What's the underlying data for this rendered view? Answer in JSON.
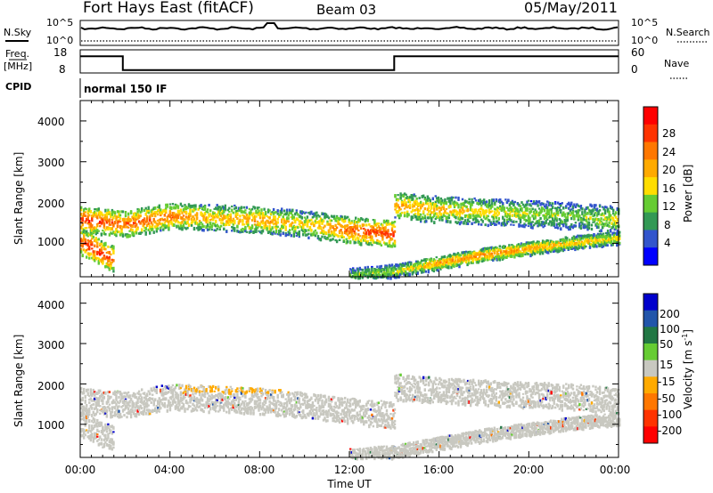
{
  "header": {
    "station": "Fort Hays East (fitACF)",
    "beam": "Beam 03",
    "date": "05/May/2011"
  },
  "noise_panel": {
    "left_label": "N.Sky",
    "left_ticks": [
      "10^5",
      "10^0"
    ],
    "right_label": "N.Search",
    "right_ticks": [
      "10^5",
      "10^0"
    ]
  },
  "freq_panel": {
    "left_label_line1": "Freq.",
    "left_label_line2": "[MHz]",
    "left_ticks": [
      "18",
      "8"
    ],
    "right_label": "Nave",
    "right_ticks": [
      "60",
      "0"
    ]
  },
  "cpid_panel": {
    "label": "CPID",
    "program": "normal 150 IF"
  },
  "power_panel": {
    "ylabel": "Slant Range [km]",
    "yticks": [
      "1000",
      "2000",
      "3000",
      "4000"
    ],
    "colorbar_label": "Power [dB]",
    "colorbar_ticks": [
      "28",
      "24",
      "20",
      "16",
      "12",
      "8",
      "4"
    ],
    "colorbar_colors": [
      "#ff0000",
      "#ff3300",
      "#ff7700",
      "#ffaa00",
      "#ffdd00",
      "#66cc33",
      "#339955",
      "#3355cc",
      "#0000ff"
    ]
  },
  "velocity_panel": {
    "ylabel": "Slant Range [km]",
    "yticks": [
      "1000",
      "2000",
      "3000",
      "4000"
    ],
    "colorbar_label": "Velocity [m s",
    "colorbar_label_sup": "-1",
    "colorbar_label_end": "]",
    "colorbar_ticks": [
      "200",
      "100",
      "50",
      "15",
      "-15",
      "-50",
      "-100",
      "-200"
    ],
    "colorbar_colors": [
      "#0000cc",
      "#2255aa",
      "#227744",
      "#66cc33",
      "#c8c8c0",
      "#ffaa00",
      "#ff7700",
      "#ff3300",
      "#ff0000"
    ]
  },
  "xaxis": {
    "label": "Time UT",
    "ticks": [
      "00:00",
      "04:00",
      "08:00",
      "12:00",
      "16:00",
      "20:00",
      "00:00"
    ]
  },
  "chart_data": {
    "type": "heatmap",
    "x_range_hours": [
      0,
      24
    ],
    "y_range_km": [
      180,
      4500
    ],
    "frequency_mhz": {
      "x": [
        0,
        1.9,
        1.9,
        14.0,
        14.0,
        24
      ],
      "values": [
        16,
        16,
        10,
        10,
        16,
        16
      ]
    },
    "power_bands": [
      {
        "t": [
          0,
          2,
          4,
          6,
          8,
          10,
          12,
          14
        ],
        "range_km": [
          1600,
          1500,
          1700,
          1650,
          1600,
          1500,
          1350,
          1250
        ],
        "power_db": [
          26,
          24,
          22,
          18,
          20,
          16,
          24,
          26
        ]
      },
      {
        "t": [
          14,
          16,
          18,
          20,
          22,
          24
        ],
        "range_km": [
          1950,
          1850,
          1800,
          1750,
          1700,
          1600
        ],
        "power_db": [
          20,
          18,
          16,
          14,
          12,
          16
        ]
      },
      {
        "t": [
          0,
          0.5,
          1,
          1.5
        ],
        "range_km": [
          1050,
          950,
          750,
          650
        ],
        "power_db": [
          26,
          28,
          26,
          24
        ]
      },
      {
        "t": [
          12,
          14,
          16,
          18,
          20,
          22,
          24
        ],
        "range_km": [
          250,
          350,
          550,
          750,
          900,
          1050,
          1150
        ],
        "power_db": [
          12,
          14,
          20,
          22,
          20,
          18,
          16
        ]
      }
    ]
  }
}
